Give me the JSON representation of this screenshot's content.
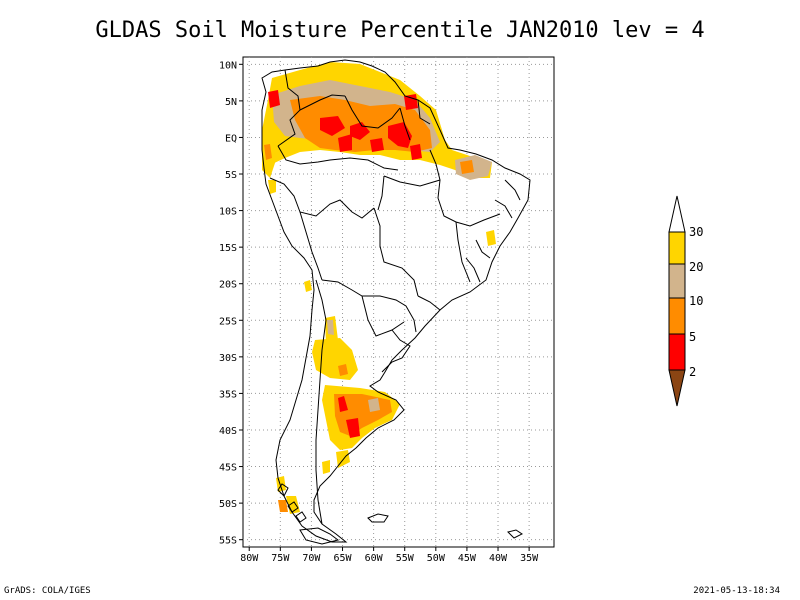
{
  "title": "GLDAS Soil Moisture Percentile JAN2010 lev = 4",
  "map": {
    "lat_labels": [
      "10N",
      "5N",
      "EQ",
      "5S",
      "10S",
      "15S",
      "20S",
      "25S",
      "30S",
      "35S",
      "40S",
      "45S",
      "50S",
      "55S"
    ],
    "lon_labels": [
      "80W",
      "75W",
      "70W",
      "65W",
      "60W",
      "55W",
      "50W",
      "45W",
      "40W",
      "35W"
    ],
    "lat_range": [
      -56,
      11
    ],
    "lon_range": [
      -81,
      -31
    ],
    "grid": "dotted"
  },
  "legend": {
    "labels": [
      "30",
      "20",
      "10",
      "5",
      "2"
    ],
    "colors": {
      "above30": "#ffffff",
      "20_30": "#ffd500",
      "10_20": "#d2b48c",
      "5_10": "#ff8c00",
      "2_5": "#ff0000",
      "below2": "#8b4513"
    }
  },
  "footer": {
    "left": "GrADS: COLA/IGES",
    "right": "2021-05-13-18:34"
  }
}
